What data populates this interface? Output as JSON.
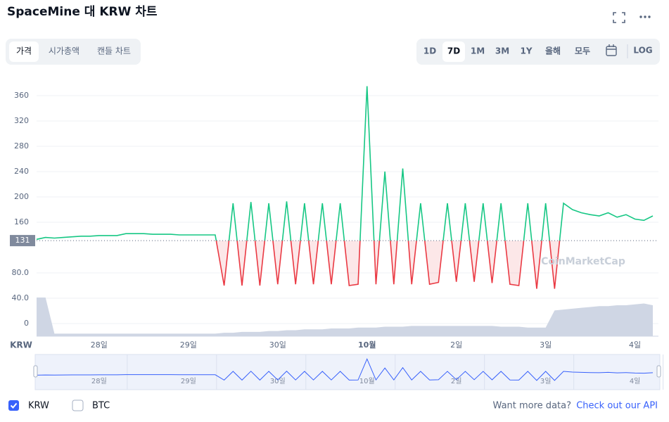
{
  "header": {
    "title": "SpaceMine 대 KRW 차트"
  },
  "tabs": [
    "가격",
    "시가총액",
    "캔들 차트"
  ],
  "ranges": [
    "1D",
    "7D",
    "1M",
    "3M",
    "1Y",
    "올해",
    "모두"
  ],
  "log": "LOG",
  "watermark": "CoinMarketCap",
  "btc_option": "BTC",
  "footer": {
    "text": "Want more data?",
    "link": "Check out our API"
  },
  "chart_data": {
    "type": "line",
    "currency_label": "KRW",
    "categories": [
      null,
      null,
      null,
      null,
      null,
      null,
      null,
      "28일",
      null,
      null,
      null,
      null,
      null,
      null,
      null,
      null,
      null,
      "29일",
      null,
      null,
      null,
      null,
      null,
      null,
      null,
      null,
      null,
      "30일",
      null,
      null,
      null,
      null,
      null,
      null,
      null,
      null,
      null,
      "10월",
      null,
      null,
      null,
      null,
      null,
      null,
      null,
      null,
      null,
      "2일",
      null,
      null,
      null,
      null,
      null,
      null,
      null,
      null,
      null,
      "3일",
      null,
      null,
      null,
      null,
      null,
      null,
      null,
      null,
      null,
      "4일",
      null,
      null
    ],
    "series": [
      {
        "name": "KRW",
        "color": "#16c784",
        "below_color": "#ea3943",
        "values": [
          133,
          136,
          135,
          136,
          137,
          138,
          138,
          139,
          139,
          139,
          142,
          142,
          142,
          141,
          141,
          141,
          140,
          140,
          140,
          140,
          140,
          60,
          190,
          60,
          192,
          60,
          190,
          62,
          193,
          62,
          190,
          62,
          190,
          62,
          190,
          60,
          62,
          375,
          62,
          240,
          62,
          245,
          62,
          190,
          62,
          65,
          190,
          66,
          190,
          66,
          190,
          64,
          190,
          62,
          60,
          190,
          55,
          190,
          55,
          190,
          180,
          175,
          172,
          170,
          175,
          168,
          172,
          165,
          163,
          170
        ]
      }
    ],
    "volume": [
      45,
      45,
      3,
      3,
      3,
      3,
      3,
      3,
      3,
      3,
      3,
      3,
      3,
      3,
      3,
      3,
      3,
      3,
      3,
      3,
      3,
      4,
      4,
      5,
      5,
      5,
      6,
      6,
      7,
      7,
      8,
      8,
      8,
      9,
      9,
      9,
      10,
      10,
      10,
      11,
      11,
      11,
      12,
      12,
      12,
      12,
      12,
      12,
      12,
      12,
      12,
      12,
      11,
      11,
      11,
      10,
      10,
      10,
      30,
      31,
      32,
      33,
      34,
      35,
      35,
      36,
      36,
      37,
      38,
      36
    ],
    "baseline": 131,
    "ylim": [
      -20,
      400
    ],
    "yticks": [
      0,
      {
        "value": 40,
        "label": "40.0"
      },
      {
        "value": 80,
        "label": "80.0"
      },
      160,
      200,
      240,
      280,
      320,
      360
    ],
    "grid": true
  }
}
